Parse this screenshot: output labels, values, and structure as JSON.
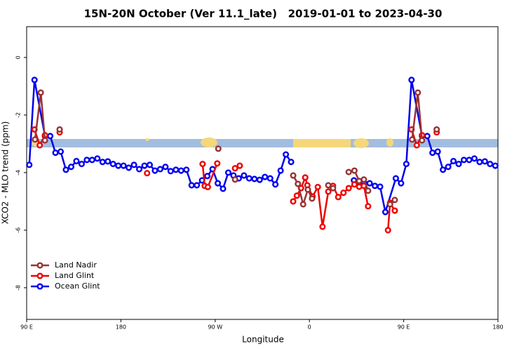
{
  "chart_data": {
    "type": "line",
    "title": "15N-20N October (Ver 11.1_late)   2019-01-01 to 2023-04-30",
    "x_label": "Longitude",
    "y_label": "XCO2 - MLO trend (ppm)",
    "xlim": [
      90,
      540
    ],
    "xticks": [
      {
        "value": 90,
        "label": "90 E"
      },
      180,
      {
        "value": 270,
        "label": "90 W"
      },
      {
        "value": 360,
        "label": "0"
      },
      {
        "value": 450,
        "label": "90 E"
      },
      {
        "value": 540,
        "label": "180"
      }
    ],
    "ylim": [
      -9.1,
      1.07
    ],
    "yticks": [
      0,
      -2,
      -4,
      -6,
      -8
    ],
    "legend": "bottom-left",
    "series": [
      {
        "name": "Land Nadir",
        "color": "#993333",
        "x": [
          98,
          103.5,
          107.5,
          115,
          121.5,
          200,
          273,
          280,
          289,
          320,
          344.5,
          349,
          354,
          358.5,
          362.5,
          370,
          378,
          382.5,
          390,
          397.5,
          403,
          407.5,
          412,
          416,
          425,
          437,
          441.5,
          450,
          458,
          463.5,
          467.5,
          475,
          481.5
        ],
        "values": [
          -2.85,
          -1.22,
          -2.88,
          null,
          -2.5,
          null,
          -3.17,
          null,
          -4.24,
          null,
          -4.1,
          -4.39,
          -5.1,
          -4.59,
          -4.9,
          null,
          -4.44,
          -4.54,
          null,
          -3.98,
          -3.93,
          -4.29,
          -4.24,
          -4.63,
          null,
          -5.1,
          -4.95,
          null,
          -2.85,
          -1.22,
          -2.88,
          null,
          -2.5
        ]
      },
      {
        "name": "Land Glint",
        "color": "#ee0000",
        "x": [
          97.5,
          102.5,
          107.5,
          115,
          121.5,
          160,
          205,
          230,
          258,
          260,
          263,
          272,
          280,
          289,
          293.5,
          320,
          344.5,
          348,
          352,
          356,
          358,
          363,
          368,
          372.5,
          378,
          382.5,
          387.5,
          392.5,
          397.5,
          403,
          407.5,
          412,
          416,
          425,
          435,
          437,
          441.5,
          450,
          457.5,
          462.5,
          467.5,
          475,
          481.5
        ],
        "values": [
          -2.5,
          -3.05,
          -2.7,
          null,
          -2.6,
          null,
          -4.02,
          null,
          -3.7,
          -4.46,
          -4.5,
          -3.68,
          null,
          -3.85,
          -3.76,
          null,
          -5.0,
          -4.8,
          -4.54,
          -4.17,
          -4.44,
          -4.83,
          -4.5,
          -5.88,
          -4.66,
          -4.46,
          -4.85,
          -4.7,
          -4.54,
          -4.41,
          -4.49,
          -4.46,
          -5.17,
          null,
          -6.0,
          -5.05,
          -5.32,
          null,
          -2.5,
          -3.05,
          -2.7,
          null,
          -2.6
        ]
      },
      {
        "name": "Ocean Glint",
        "color": "#0000ee",
        "x": [
          92.5,
          97.5,
          107.5,
          112.5,
          117.5,
          122.5,
          127.5,
          132.5,
          137.5,
          142.5,
          147.5,
          152.5,
          157.5,
          162.5,
          167.5,
          172.5,
          177.5,
          182.5,
          187.5,
          192.5,
          197.5,
          202.5,
          207.5,
          212.5,
          217.5,
          222.5,
          227.5,
          232.5,
          237.5,
          242.5,
          247.5,
          252.5,
          257.5,
          262.5,
          267.5,
          272.5,
          277.5,
          282.5,
          287.5,
          292.5,
          297.5,
          302.5,
          307.5,
          312.5,
          317.5,
          322.5,
          327.5,
          332.5,
          337.5,
          342.5,
          372.5,
          402.5,
          407.5,
          412.5,
          417.5,
          422.5,
          427.5,
          432.5,
          442.5,
          447.5,
          452.5,
          457.5,
          467.5,
          472.5,
          477.5,
          482.5,
          487.5,
          492.5,
          497.5,
          502.5,
          507.5,
          512.5,
          517.5,
          522.5,
          527.5,
          532.5,
          537.5
        ],
        "values": [
          -3.73,
          -0.78,
          -2.73,
          -2.73,
          -3.31,
          -3.27,
          -3.9,
          -3.8,
          -3.6,
          -3.7,
          -3.56,
          -3.56,
          -3.51,
          -3.63,
          -3.61,
          -3.7,
          -3.76,
          -3.76,
          -3.83,
          -3.73,
          -3.88,
          -3.76,
          -3.73,
          -3.93,
          -3.88,
          -3.8,
          -3.95,
          -3.9,
          -3.93,
          -3.9,
          -4.44,
          -4.44,
          -4.27,
          -4.12,
          -3.88,
          -4.37,
          -4.56,
          -4.0,
          -4.1,
          -4.2,
          -4.1,
          -4.2,
          -4.22,
          -4.25,
          -4.15,
          -4.2,
          -4.41,
          -3.93,
          -3.37,
          -3.63,
          null,
          -4.27,
          -4.44,
          -4.37,
          -4.37,
          -4.46,
          -4.49,
          -5.37,
          -4.2,
          -4.37,
          -3.7,
          -0.78,
          -2.73,
          -2.73,
          -3.31,
          -3.27,
          -3.9,
          -3.8,
          -3.6,
          -3.7,
          -3.56,
          -3.56,
          -3.51,
          -3.63,
          -3.61,
          -3.7,
          -3.76
        ]
      }
    ]
  }
}
